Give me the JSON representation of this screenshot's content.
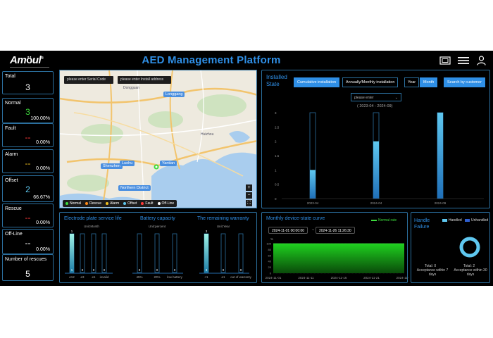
{
  "header": {
    "logo": "Am",
    "logo_tail": "ul",
    "logo_reg": "®",
    "title": "AED Management Platform",
    "icons": [
      "fullscreen-icon",
      "menu-icon",
      "user-icon"
    ]
  },
  "stats": [
    {
      "label": "Total",
      "value": "3",
      "percent": "",
      "color": "#ffffff"
    },
    {
      "label": "Normal",
      "value": "3",
      "percent": "100.00%",
      "color": "#3ddc3d"
    },
    {
      "label": "Fault",
      "value": "--",
      "percent": "0.00%",
      "color": "#ff3b3b"
    },
    {
      "label": "Alarm",
      "value": "--",
      "percent": "0.00%",
      "color": "#f0c020"
    },
    {
      "label": "Offset",
      "value": "2",
      "percent": "66.67%",
      "color": "#5fc8f0"
    },
    {
      "label": "Rescue",
      "value": "--",
      "percent": "0.00%",
      "color": "#ff3b3b"
    },
    {
      "label": "Off-Line",
      "value": "--",
      "percent": "0.00%",
      "color": "#ffffff"
    },
    {
      "label": "Number of rescues",
      "value": "5",
      "percent": "",
      "color": "#ffffff"
    }
  ],
  "map": {
    "serial_placeholder": "please enter Serial Code",
    "address_placeholder": "please enter Install address",
    "labels": [
      "Dongguan",
      "Shenzhen",
      "Luohu",
      "Yantian",
      "Longgang",
      "Northern District",
      "Huizhou"
    ],
    "legend": [
      {
        "label": "Normal",
        "color": "#3ddc3d"
      },
      {
        "label": "Rescue",
        "color": "#ff8c1a"
      },
      {
        "label": "Alarm",
        "color": "#f0c020"
      },
      {
        "label": "Offset",
        "color": "#5fc8f0"
      },
      {
        "label": "Fault",
        "color": "#ff3b3b"
      },
      {
        "label": "Off-Line",
        "color": "#ffffff"
      }
    ],
    "zoom_in": "+",
    "zoom_out": "−",
    "fit": "⛶"
  },
  "installed": {
    "title": "Installed State",
    "tab_cumulative": "Cumulative installation",
    "tab_annual": "Annually/Monthly installation",
    "btn_year": "Year",
    "btn_month": "Month",
    "btn_search": "Search by customer",
    "select_placeholder": "please enter",
    "range": "( 2023-04 - 2024-09)",
    "chart_data": {
      "type": "bar",
      "categories": [
        "2023-04",
        "2024-04",
        "2024-09"
      ],
      "values": [
        1,
        2,
        3
      ],
      "ylim": [
        0,
        3
      ],
      "yticks": [
        "0",
        "0.5",
        "1",
        "1.5",
        "2",
        "2.5",
        "3"
      ]
    }
  },
  "electrode": {
    "title": "Electrode plate service life",
    "unit": "Unit:Month",
    "chart_data": {
      "type": "bar",
      "categories": [
        "≤12",
        "≤3",
        "≤1",
        "invalid"
      ],
      "values": [
        1,
        0,
        0,
        0
      ]
    }
  },
  "battery": {
    "title": "Battery capacity",
    "unit": "Unit:percent",
    "chart_data": {
      "type": "bar",
      "categories": [
        "45%",
        "20%",
        "low battery"
      ],
      "values": [
        0,
        0,
        0
      ]
    }
  },
  "warranty": {
    "title": "The remaining warranty",
    "unit": "Unit:Year",
    "chart_data": {
      "type": "bar",
      "categories": [
        "<1",
        "≤1",
        "out of warranty"
      ],
      "values": [
        3,
        0,
        0
      ]
    }
  },
  "monthly": {
    "title": "Monthly device-state curve",
    "legend": "Normal rate",
    "start": "2024-11-01 00:00:00",
    "sep": "~",
    "end": "2024-11-26 11:26:30",
    "unit": "%",
    "chart_data": {
      "type": "area",
      "x": [
        "2024-11-01",
        "2024-11-11",
        "2024-11-16",
        "2024-11-21",
        "2024-11-26"
      ],
      "values": [
        100,
        100,
        100,
        100,
        100
      ],
      "ylim": [
        0,
        100
      ],
      "yticks": [
        "0",
        "20",
        "40",
        "60",
        "80",
        "100"
      ],
      "legend": "Normal rate"
    }
  },
  "handle": {
    "title": "Handle Failure",
    "legend_handled": "Handled",
    "legend_unhandled": "Unhandled",
    "total_left": "Total: 0",
    "caption_left": "Acceptance within 7 days",
    "total_right": "Total: 2",
    "caption_right": "Acceptance within 30 days",
    "colors": {
      "handled": "#5fc8f0",
      "unhandled": "#2f5fd0"
    }
  }
}
